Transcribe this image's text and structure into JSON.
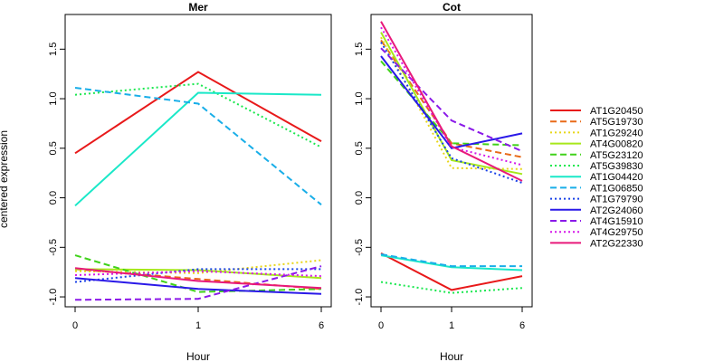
{
  "chart_data": {
    "type": "line",
    "ylabel": "centered expression",
    "xlabel": "Hour",
    "x": [
      "0",
      "1",
      "6"
    ],
    "ylim": [
      -1.1,
      1.85
    ],
    "yticks": [
      "-1.0",
      "-0.5",
      "0.0",
      "0.5",
      "1.0",
      "1.5"
    ],
    "legend_position": "right",
    "panels": [
      {
        "title": "Mer",
        "series": [
          {
            "name": "AT1G20450",
            "values": [
              0.45,
              1.27,
              0.57
            ]
          },
          {
            "name": "AT5G19730",
            "values": [
              -0.72,
              -0.82,
              -0.92
            ]
          },
          {
            "name": "AT1G29240",
            "values": [
              -0.74,
              -0.76,
              -0.63
            ]
          },
          {
            "name": "AT4G00820",
            "values": [
              -0.72,
              -0.73,
              -0.81
            ]
          },
          {
            "name": "AT5G23120",
            "values": [
              -0.58,
              -0.95,
              -0.92
            ]
          },
          {
            "name": "AT5G39830",
            "values": [
              1.04,
              1.15,
              0.51
            ]
          },
          {
            "name": "AT1G04420",
            "values": [
              -0.08,
              1.06,
              1.04
            ]
          },
          {
            "name": "AT1G06850",
            "values": [
              1.11,
              0.95,
              -0.07
            ]
          },
          {
            "name": "AT1G79790",
            "values": [
              -0.85,
              -0.72,
              -0.72
            ]
          },
          {
            "name": "AT2G24060",
            "values": [
              -0.81,
              -0.92,
              -0.97
            ]
          },
          {
            "name": "AT4G15910",
            "values": [
              -1.03,
              -1.02,
              -0.69
            ]
          },
          {
            "name": "AT4G29750",
            "values": [
              -0.78,
              -0.74,
              -0.79
            ]
          },
          {
            "name": "AT2G22330",
            "values": [
              -0.71,
              -0.84,
              -0.91
            ]
          }
        ]
      },
      {
        "title": "Cot",
        "series": [
          {
            "name": "AT1G20450",
            "values": [
              -0.56,
              -0.93,
              -0.79
            ]
          },
          {
            "name": "AT5G19730",
            "values": [
              1.59,
              0.55,
              0.41
            ]
          },
          {
            "name": "AT1G29240",
            "values": [
              1.62,
              0.3,
              0.29
            ]
          },
          {
            "name": "AT4G00820",
            "values": [
              1.67,
              0.38,
              0.24
            ]
          },
          {
            "name": "AT5G23120",
            "values": [
              1.38,
              0.55,
              0.53
            ]
          },
          {
            "name": "AT5G39830",
            "values": [
              -0.85,
              -0.96,
              -0.91
            ]
          },
          {
            "name": "AT1G04420",
            "values": [
              -0.58,
              -0.7,
              -0.73
            ]
          },
          {
            "name": "AT1G06850",
            "values": [
              -0.57,
              -0.69,
              -0.69
            ]
          },
          {
            "name": "AT1G79790",
            "values": [
              1.57,
              0.4,
              0.15
            ]
          },
          {
            "name": "AT2G24060",
            "values": [
              1.43,
              0.5,
              0.65
            ]
          },
          {
            "name": "AT4G15910",
            "values": [
              1.51,
              0.78,
              0.47
            ]
          },
          {
            "name": "AT4G29750",
            "values": [
              1.72,
              0.51,
              0.33
            ]
          },
          {
            "name": "AT2G22330",
            "values": [
              1.78,
              0.52,
              0.17
            ]
          }
        ]
      }
    ],
    "styles": [
      {
        "name": "AT1G20450",
        "color": "#e8191a",
        "dash": "solid"
      },
      {
        "name": "AT5G19730",
        "color": "#e86a19",
        "dash": "dashed"
      },
      {
        "name": "AT1G29240",
        "color": "#e8d619",
        "dash": "dotted"
      },
      {
        "name": "AT4G00820",
        "color": "#a6e81a",
        "dash": "solid"
      },
      {
        "name": "AT5G23120",
        "color": "#40d21a",
        "dash": "dashed"
      },
      {
        "name": "AT5G39830",
        "color": "#1ae84f",
        "dash": "dotted"
      },
      {
        "name": "AT1G04420",
        "color": "#1ae8c8",
        "dash": "solid"
      },
      {
        "name": "AT1G06850",
        "color": "#19aee8",
        "dash": "dashed"
      },
      {
        "name": "AT1G79790",
        "color": "#1942e8",
        "dash": "dotted"
      },
      {
        "name": "AT2G24060",
        "color": "#2a19e8",
        "dash": "solid"
      },
      {
        "name": "AT4G15910",
        "color": "#8a19e8",
        "dash": "dashed"
      },
      {
        "name": "AT4G29750",
        "color": "#d619e8",
        "dash": "dotted"
      },
      {
        "name": "AT2G22330",
        "color": "#e8197a",
        "dash": "solid"
      }
    ]
  }
}
